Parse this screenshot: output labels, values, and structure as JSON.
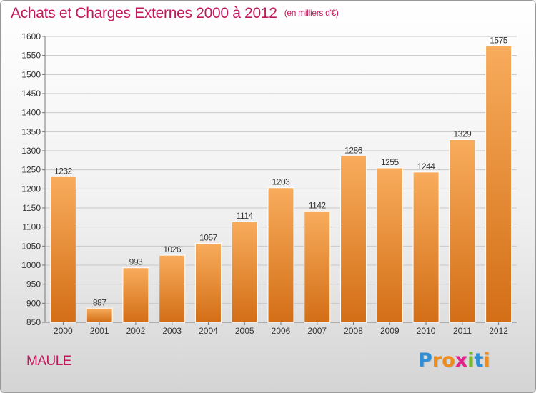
{
  "title": {
    "main": "Achats et Charges Externes 2000 à 2012",
    "unit": "(en milliers d'€)"
  },
  "place": "MAULE",
  "brand": {
    "letters": [
      "P",
      "r",
      "o",
      "x",
      "i",
      "t",
      "i"
    ],
    "colors": [
      "#2e8fd6",
      "#f08c1c",
      "#f08c1c",
      "#e8208c",
      "#7cb82f",
      "#2e8fd6",
      "#f08c1c"
    ]
  },
  "colors": {
    "title": "#c2185b",
    "bar_top": "#f8ac5c",
    "bar_bottom": "#d36e16"
  },
  "chart_data": {
    "type": "bar",
    "categories": [
      "2000",
      "2001",
      "2002",
      "2003",
      "2004",
      "2005",
      "2006",
      "2007",
      "2008",
      "2009",
      "2010",
      "2011",
      "2012"
    ],
    "values": [
      1232,
      887,
      993,
      1026,
      1057,
      1114,
      1203,
      1142,
      1286,
      1255,
      1244,
      1329,
      1575
    ],
    "ylim": [
      850,
      1600
    ],
    "yticks": [
      850,
      900,
      950,
      1000,
      1050,
      1100,
      1150,
      1200,
      1250,
      1300,
      1350,
      1400,
      1450,
      1500,
      1550,
      1600
    ],
    "grid": true
  }
}
